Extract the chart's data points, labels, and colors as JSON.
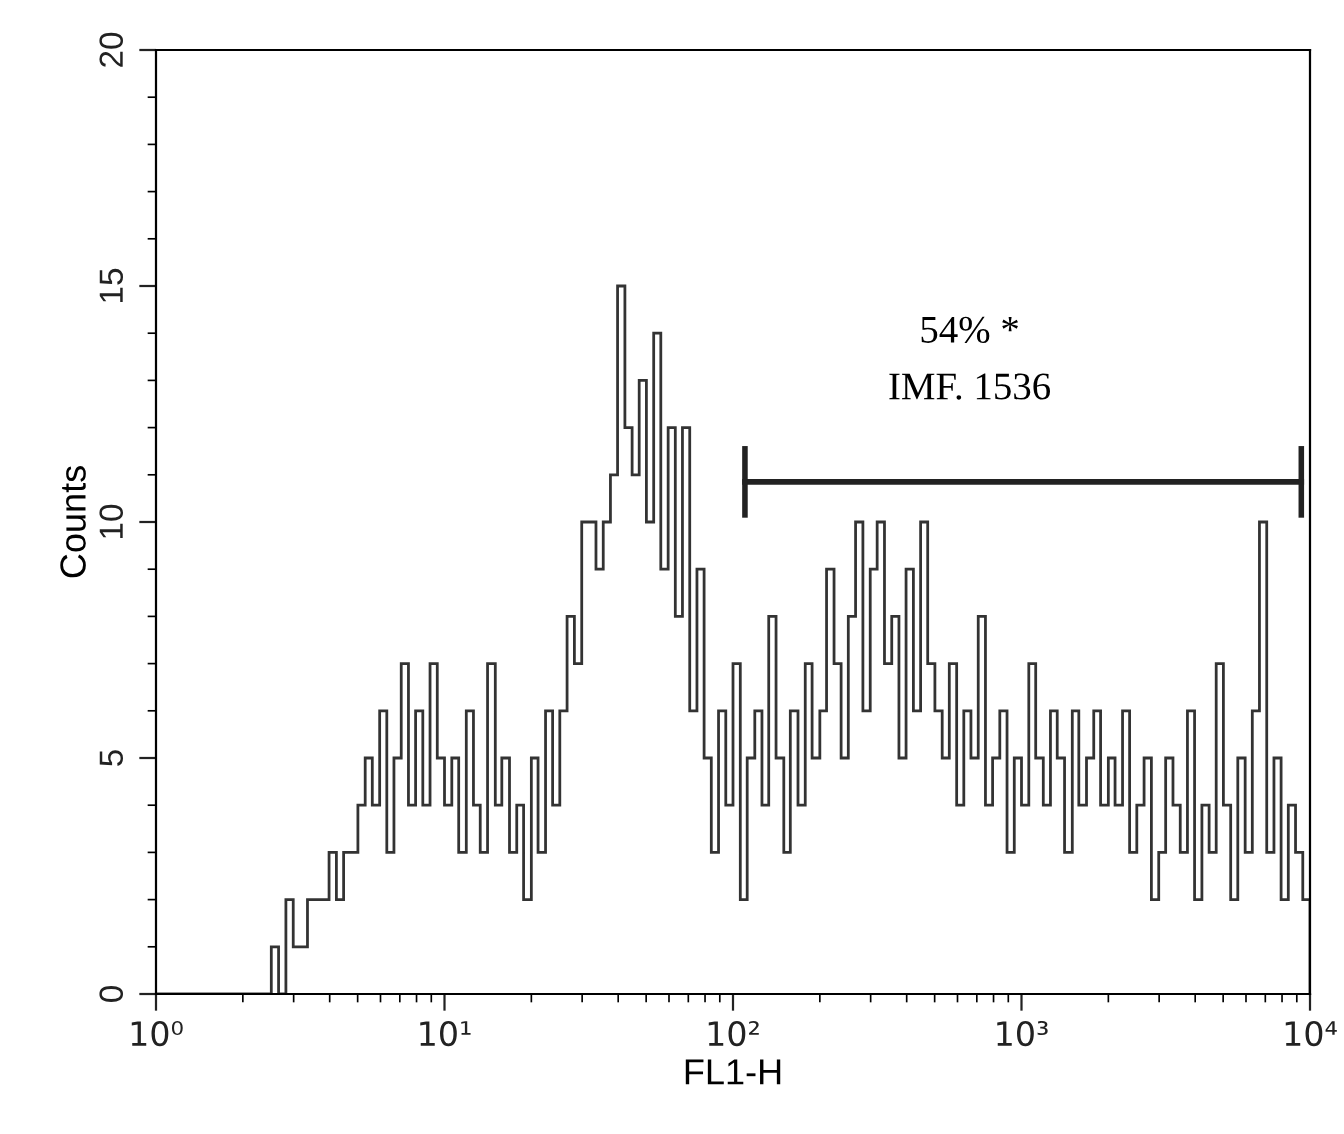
{
  "chart_data": {
    "type": "histogram",
    "xlabel": "FL1-H",
    "ylabel": "Counts",
    "log": "x",
    "color": "#333333",
    "bins": [
      1,
      1.06,
      1.12,
      1.19,
      1.26,
      1.33,
      1.41,
      1.5,
      1.58,
      1.68,
      1.78,
      1.88,
      2,
      2.11,
      2.24,
      2.37,
      2.51,
      2.66,
      2.82,
      2.99,
      3.16,
      3.35,
      3.55,
      3.76,
      3.98,
      4.22,
      4.47,
      4.73,
      5.01,
      5.31,
      5.62,
      5.96,
      6.31,
      6.68,
      7.08,
      7.5,
      7.94,
      8.41,
      8.91,
      9.44,
      10,
      10.6,
      11.2,
      11.9,
      12.6,
      13.3,
      14.1,
      15,
      15.8,
      16.8,
      17.8,
      18.8,
      20,
      21.1,
      22.4,
      23.7,
      25.1,
      26.6,
      28.2,
      29.9,
      31.6,
      33.5,
      35.5,
      37.6,
      39.8,
      42.2,
      44.7,
      47.3,
      50.1,
      53.1,
      56.2,
      59.6,
      63.1,
      66.8,
      70.8,
      75,
      79.4,
      84.1,
      89.1,
      94.4,
      100,
      106,
      112,
      119,
      126,
      133,
      141,
      150,
      158,
      168,
      178,
      188,
      200,
      211,
      224,
      237,
      251,
      266,
      282,
      299,
      316,
      335,
      355,
      376,
      398,
      422,
      447,
      473,
      501,
      531,
      562,
      596,
      631,
      668,
      708,
      750,
      794,
      841,
      891,
      944,
      1000,
      1060,
      1120,
      1190,
      1260,
      1330,
      1410,
      1500,
      1580,
      1680,
      1780,
      1880,
      2000,
      2110,
      2240,
      2370,
      2510,
      2660,
      2820,
      2990,
      3160,
      3350,
      3550,
      3760,
      3980,
      4220,
      4470,
      4730,
      5010,
      5310,
      5620,
      5960,
      6310,
      6680,
      7080,
      7500,
      7940,
      8410,
      8910,
      9440,
      10000
    ],
    "values": [
      0,
      0,
      0,
      0,
      0,
      0,
      0,
      0,
      0,
      0,
      0,
      0,
      0,
      0,
      0,
      0,
      1,
      0,
      2,
      1,
      1,
      2,
      2,
      2,
      3,
      2,
      3,
      3,
      4,
      5,
      4,
      6,
      3,
      5,
      7,
      4,
      6,
      4,
      7,
      5,
      4,
      5,
      3,
      6,
      4,
      3,
      7,
      4,
      5,
      3,
      4,
      2,
      5,
      3,
      6,
      4,
      6,
      8,
      7,
      10,
      10,
      9,
      10,
      11,
      15,
      12,
      11,
      13,
      10,
      14,
      9,
      12,
      8,
      12,
      6,
      9,
      5,
      3,
      6,
      4,
      7,
      2,
      5,
      6,
      4,
      8,
      5,
      3,
      6,
      4,
      7,
      5,
      6,
      9,
      7,
      5,
      8,
      10,
      6,
      9,
      10,
      7,
      8,
      5,
      9,
      6,
      10,
      7,
      6,
      5,
      7,
      4,
      6,
      5,
      8,
      4,
      5,
      6,
      3,
      5,
      4,
      7,
      5,
      4,
      6,
      5,
      3,
      6,
      4,
      5,
      6,
      4,
      5,
      4,
      6,
      3,
      4,
      5,
      2,
      3,
      5,
      4,
      3,
      6,
      2,
      4,
      3,
      7,
      4,
      2,
      5,
      3,
      6,
      10,
      3,
      5,
      2,
      4,
      3,
      2
    ],
    "xlim": [
      1,
      10000
    ],
    "xticks": [
      {
        "value": 1,
        "label": "10⁰"
      },
      {
        "value": 10,
        "label": "10¹"
      },
      {
        "value": 100,
        "label": "10²"
      },
      {
        "value": 1000,
        "label": "10³"
      },
      {
        "value": 10000,
        "label": "10⁴"
      }
    ],
    "ylim": [
      0,
      20
    ],
    "yticks": [
      0,
      5,
      10,
      15,
      20
    ],
    "series": [
      {
        "type": "line",
        "color": "#222222",
        "x": [
          110,
          9330
        ],
        "values": [
          10.85,
          10.85
        ]
      }
    ],
    "annotations": [
      "54% *",
      "IMF. 1536"
    ]
  }
}
